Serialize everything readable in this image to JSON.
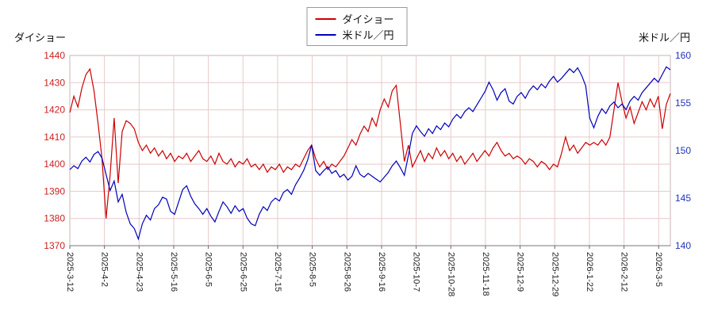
{
  "page": {
    "background": "#ffffff",
    "grid_color": "#e8c9c9"
  },
  "chart_data": {
    "type": "line",
    "title": "",
    "grid": true,
    "grid_color": "#e8c9c9",
    "legend_position": "top-center",
    "x_ticks": [
      "2025-3-12",
      "2025-4-2",
      "2025-4-23",
      "2025-5-16",
      "2025-6-5",
      "2025-6-25",
      "2025-7-15",
      "2025-8-5",
      "2025-8-26",
      "2025-9-16",
      "2025-10-7",
      "2025-10-28",
      "2025-11-18",
      "2025-12-9",
      "2025-12-29",
      "2026-1-22",
      "2026-2-12",
      "2026-3-5"
    ],
    "left_axis": {
      "title": "ダイショー",
      "min": 1370,
      "max": 1440,
      "ticks": [
        1370,
        1380,
        1390,
        1400,
        1410,
        1420,
        1430,
        1440
      ],
      "color": "#cc2222"
    },
    "right_axis": {
      "title": "米ドル／円",
      "min": 140,
      "max": 160,
      "ticks": [
        140,
        145,
        150,
        155,
        160
      ],
      "color": "#2233bb"
    },
    "series": [
      {
        "name": "ダイショー",
        "axis": "left",
        "color": "#cc0000",
        "values": [
          1419,
          1425,
          1421,
          1428,
          1433,
          1435,
          1427,
          1415,
          1402,
          1380,
          1396,
          1417,
          1393,
          1412,
          1416,
          1415,
          1413,
          1408,
          1405,
          1407,
          1404,
          1406,
          1403,
          1405,
          1402,
          1404,
          1401,
          1403,
          1402,
          1404,
          1401,
          1403,
          1405,
          1402,
          1401,
          1403,
          1400,
          1404,
          1401,
          1400,
          1402,
          1399,
          1401,
          1400,
          1402,
          1399,
          1400,
          1398,
          1400,
          1397,
          1399,
          1398,
          1400,
          1397,
          1399,
          1398,
          1400,
          1399,
          1402,
          1405,
          1407,
          1402,
          1399,
          1401,
          1398,
          1400,
          1399,
          1401,
          1403,
          1406,
          1409,
          1407,
          1411,
          1414,
          1412,
          1417,
          1414,
          1420,
          1424,
          1421,
          1427,
          1429,
          1415,
          1401,
          1407,
          1399,
          1402,
          1405,
          1401,
          1404,
          1402,
          1406,
          1403,
          1405,
          1402,
          1404,
          1401,
          1403,
          1400,
          1402,
          1404,
          1401,
          1403,
          1405,
          1403,
          1406,
          1408,
          1405,
          1403,
          1404,
          1402,
          1403,
          1402,
          1400,
          1402,
          1401,
          1399,
          1401,
          1400,
          1398,
          1400,
          1399,
          1404,
          1410,
          1405,
          1407,
          1404,
          1406,
          1408,
          1407,
          1408,
          1407,
          1409,
          1407,
          1410,
          1420,
          1430,
          1423,
          1417,
          1421,
          1415,
          1419,
          1423,
          1420,
          1424,
          1421,
          1425,
          1413,
          1422,
          1426
        ]
      },
      {
        "name": "米ドル／円",
        "axis": "right",
        "color": "#0000bb",
        "values": [
          148.0,
          148.4,
          148.1,
          148.9,
          149.3,
          148.8,
          149.6,
          149.9,
          149.2,
          147.5,
          145.8,
          146.8,
          144.6,
          145.4,
          143.5,
          142.3,
          141.8,
          140.7,
          142.3,
          143.2,
          142.7,
          143.9,
          144.3,
          145.1,
          144.9,
          143.6,
          143.3,
          144.6,
          145.9,
          146.3,
          145.2,
          144.4,
          143.9,
          143.3,
          143.9,
          143.1,
          142.5,
          143.6,
          144.6,
          144.1,
          143.4,
          144.2,
          143.6,
          143.9,
          142.9,
          142.3,
          142.1,
          143.3,
          144.1,
          143.7,
          144.6,
          145.0,
          144.7,
          145.6,
          145.9,
          145.4,
          146.4,
          147.1,
          147.9,
          149.0,
          150.6,
          147.9,
          147.4,
          147.9,
          148.3,
          147.6,
          147.9,
          147.2,
          147.5,
          146.9,
          147.3,
          148.4,
          147.5,
          147.2,
          147.6,
          147.3,
          147.0,
          146.7,
          147.2,
          147.7,
          148.4,
          148.9,
          148.2,
          147.4,
          149.5,
          151.8,
          152.6,
          152.0,
          151.5,
          152.3,
          151.8,
          152.6,
          152.2,
          152.9,
          152.5,
          153.3,
          153.8,
          153.4,
          154.1,
          154.5,
          154.1,
          154.8,
          155.5,
          156.2,
          157.2,
          156.4,
          155.3,
          156.1,
          156.5,
          155.2,
          154.9,
          155.7,
          156.1,
          155.5,
          156.3,
          156.8,
          156.4,
          157.0,
          156.6,
          157.3,
          157.8,
          157.2,
          157.6,
          158.1,
          158.6,
          158.2,
          158.7,
          157.9,
          156.8,
          153.4,
          152.4,
          153.6,
          154.4,
          153.9,
          154.7,
          155.1,
          154.5,
          154.9,
          154.3,
          155.2,
          155.7,
          155.3,
          156.1,
          156.6,
          157.1,
          157.6,
          157.2,
          158.0,
          158.8,
          158.5
        ]
      }
    ]
  }
}
